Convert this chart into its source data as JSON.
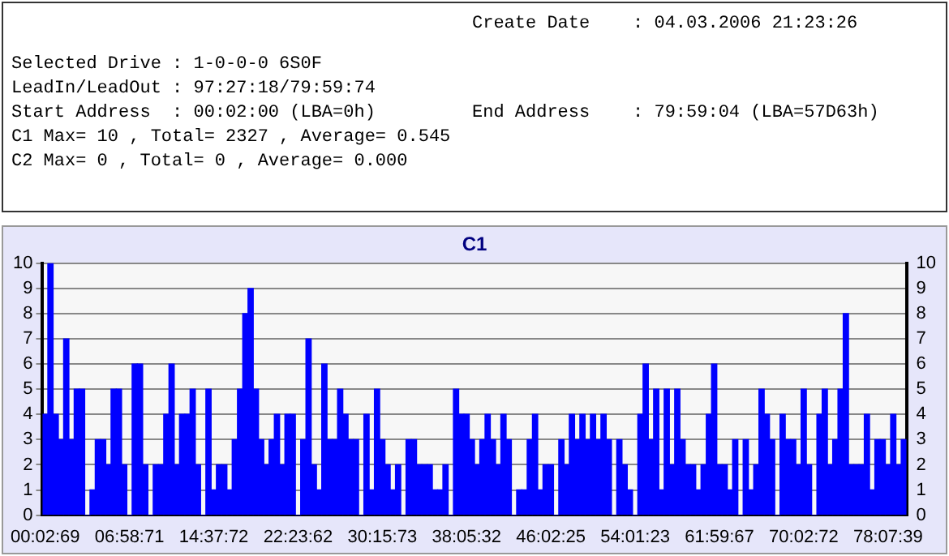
{
  "chart_data": {
    "type": "bar",
    "title": "C1",
    "annotations": [
      "Create Date    : 04.03.2006 21:23:26",
      "Selected Drive : 1-0-0-0 6S0F",
      "LeadIn/LeadOut : 97:27:18/79:59:74",
      "Start Address  : 00:02:00 (LBA=0h)",
      "End Address    : 79:59:04 (LBA=57D63h)",
      "C1 Max= 10 , Total= 2327 , Average= 0.545",
      "C2 Max= 0 , Total= 0 , Average= 0.000"
    ],
    "categories": [
      "00:02:69",
      null,
      null,
      null,
      null,
      null,
      null,
      null,
      null,
      null,
      null,
      null,
      null,
      null,
      null,
      null,
      "06:58:71",
      null,
      null,
      null,
      null,
      null,
      null,
      null,
      null,
      null,
      null,
      null,
      null,
      null,
      null,
      null,
      "14:37:72",
      null,
      null,
      null,
      null,
      null,
      null,
      null,
      null,
      null,
      null,
      null,
      null,
      null,
      null,
      null,
      "22:23:62",
      null,
      null,
      null,
      null,
      null,
      null,
      null,
      null,
      null,
      null,
      null,
      null,
      null,
      null,
      null,
      "30:15:73",
      null,
      null,
      null,
      null,
      null,
      null,
      null,
      null,
      null,
      null,
      null,
      null,
      null,
      null,
      null,
      "38:05:32",
      null,
      null,
      null,
      null,
      null,
      null,
      null,
      null,
      null,
      null,
      null,
      null,
      null,
      null,
      null,
      "46:02:25",
      null,
      null,
      null,
      null,
      null,
      null,
      null,
      null,
      null,
      null,
      null,
      null,
      null,
      null,
      null,
      "54:01:23",
      null,
      null,
      null,
      null,
      null,
      null,
      null,
      null,
      null,
      null,
      null,
      null,
      null,
      null,
      null,
      "61:59:67",
      null,
      null,
      null,
      null,
      null,
      null,
      null,
      null,
      null,
      null,
      null,
      null,
      null,
      null,
      null,
      "70:02:72",
      null,
      null,
      null,
      null,
      null,
      null,
      null,
      null,
      null,
      null,
      null,
      null,
      null,
      null,
      null,
      "78:07:39",
      null,
      null,
      null
    ],
    "values": [
      4,
      10,
      4,
      3,
      7,
      3,
      5,
      5,
      0,
      1,
      3,
      3,
      2,
      5,
      5,
      2,
      0,
      6,
      6,
      2,
      0,
      2,
      2,
      4,
      6,
      2,
      4,
      4,
      5,
      2,
      0,
      5,
      1,
      2,
      2,
      1,
      3,
      5,
      8,
      9,
      5,
      3,
      2,
      3,
      4,
      2,
      4,
      4,
      0,
      3,
      7,
      2,
      1,
      6,
      3,
      3,
      5,
      4,
      3,
      3,
      0,
      4,
      1,
      5,
      3,
      2,
      1,
      2,
      0,
      3,
      3,
      2,
      2,
      2,
      1,
      1,
      2,
      0,
      5,
      4,
      4,
      3,
      2,
      3,
      4,
      3,
      2,
      4,
      3,
      0,
      1,
      1,
      3,
      4,
      1,
      2,
      2,
      0,
      3,
      2,
      4,
      3,
      4,
      3,
      4,
      3,
      4,
      3,
      0,
      3,
      2,
      1,
      0,
      4,
      6,
      3,
      5,
      1,
      5,
      2,
      5,
      3,
      2,
      2,
      1,
      2,
      4,
      6,
      2,
      2,
      1,
      3,
      0,
      3,
      1,
      2,
      5,
      4,
      3,
      0,
      4,
      3,
      3,
      2,
      5,
      2,
      0,
      4,
      5,
      2,
      3,
      5,
      8,
      2,
      2,
      2,
      4,
      1,
      3,
      3,
      2,
      4,
      2,
      3
    ],
    "color": "#0000ff",
    "ylim": [
      0,
      10
    ],
    "yticks": [
      0,
      1,
      2,
      3,
      4,
      5,
      6,
      7,
      8,
      9,
      10
    ],
    "y2lim": [
      0,
      10
    ],
    "y2ticks": [
      0,
      1,
      2,
      3,
      4,
      5,
      6,
      7,
      8,
      9,
      10
    ],
    "grid": "y",
    "legend": false
  }
}
